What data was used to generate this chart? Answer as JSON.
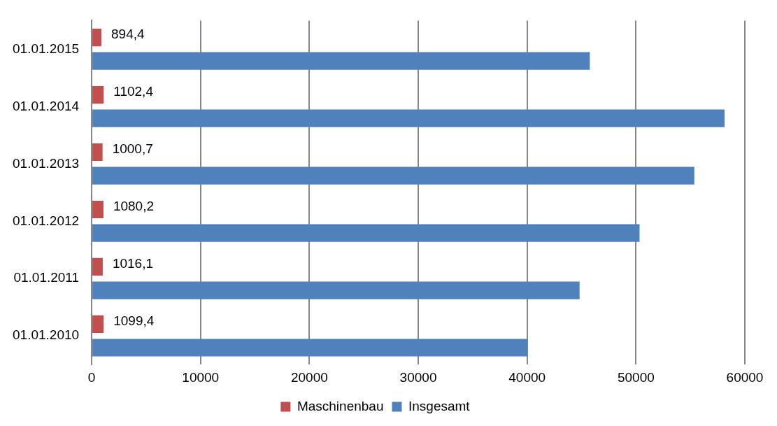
{
  "chart_data": {
    "type": "bar",
    "orientation": "horizontal",
    "categories": [
      "01.01.2015",
      "01.01.2014",
      "01.01.2013",
      "01.01.2012",
      "01.01.2011",
      "01.01.2010"
    ],
    "series": [
      {
        "name": "Maschinenbau",
        "color": "#c0504d",
        "values": [
          894.4,
          1102.4,
          1000.7,
          1080.2,
          1016.1,
          1099.4
        ],
        "value_labels": [
          "894,4",
          "1102,4",
          "1000,7",
          "1080,2",
          "1016,1",
          "1099,4"
        ]
      },
      {
        "name": "Insgesamt",
        "color": "#4f81bd",
        "values": [
          45760,
          58140,
          55360,
          50330,
          44820,
          40040
        ]
      }
    ],
    "xlim": [
      0,
      60000
    ],
    "xticks": [
      0,
      10000,
      20000,
      30000,
      40000,
      50000,
      60000
    ],
    "grid": "x",
    "legend": "bottom"
  }
}
